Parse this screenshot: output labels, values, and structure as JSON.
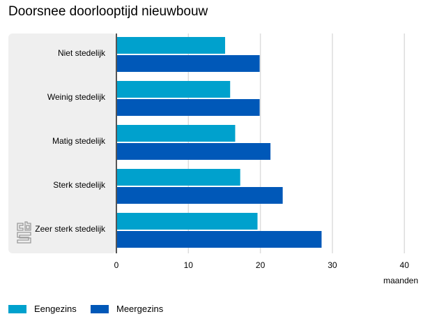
{
  "title": "Doorsnee doorlooptijd nieuwbouw",
  "logo_text": "cbs",
  "chart_data": {
    "type": "bar",
    "orientation": "horizontal",
    "title": "Doorsnee doorlooptijd nieuwbouw",
    "categories": [
      "Niet stedelijk",
      "Weinig stedelijk",
      "Matig stedelijk",
      "Sterk stedelijk",
      "Zeer sterk stedelijk"
    ],
    "series": [
      {
        "name": "Eengezins",
        "color": "#00a1cd",
        "values": [
          15.1,
          15.8,
          16.5,
          17.2,
          19.6
        ]
      },
      {
        "name": "Meergezins",
        "color": "#0058b8",
        "values": [
          19.9,
          19.9,
          21.4,
          23.1,
          28.5
        ]
      }
    ],
    "xlabel": "maanden",
    "xlim": [
      0,
      40
    ],
    "xticks": [
      "0",
      "10",
      "20",
      "30",
      "40"
    ],
    "grid": true,
    "legend_position": "bottom-left"
  }
}
